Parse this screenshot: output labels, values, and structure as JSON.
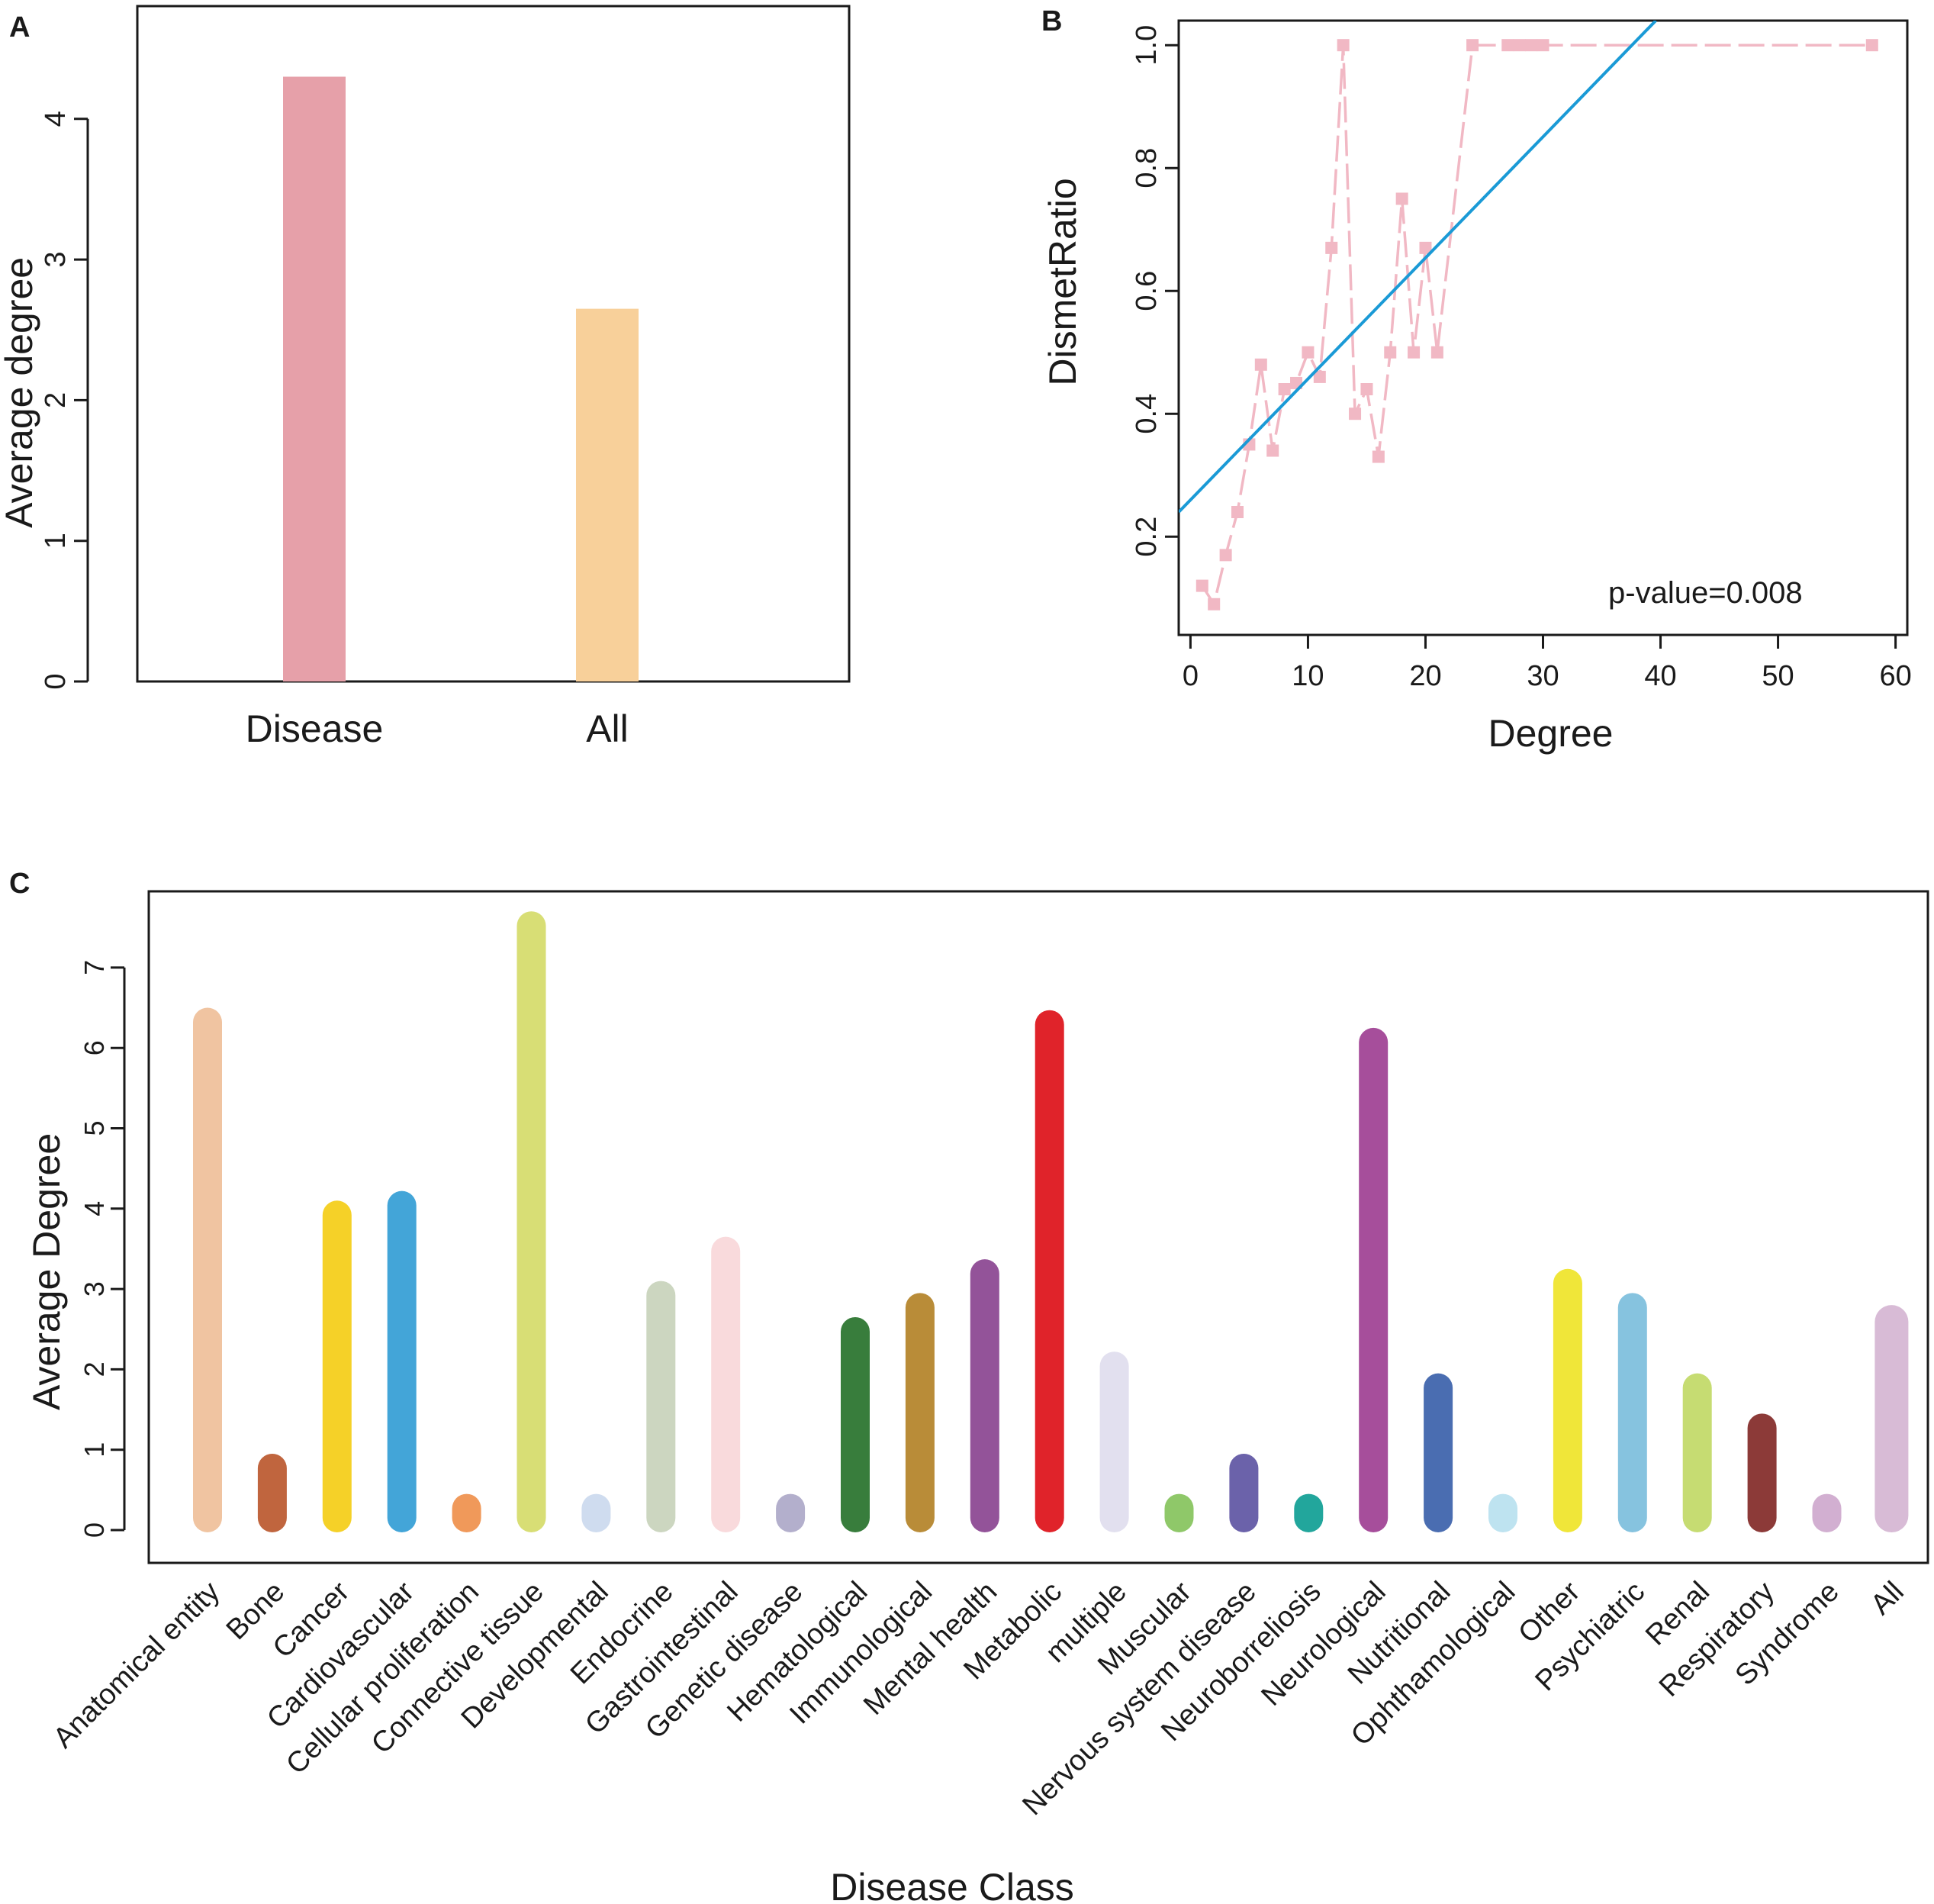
{
  "chart_data": [
    {
      "panel": "A",
      "type": "bar",
      "title": "",
      "xlabel": "",
      "ylabel": "Average degree",
      "categories": [
        "Disease",
        "All"
      ],
      "values": [
        4.3,
        2.65
      ],
      "colors": [
        "#e6a0a9",
        "#f8d09a"
      ],
      "ylim": [
        0,
        4.8
      ],
      "yticks": [
        0,
        1,
        2,
        3,
        4
      ],
      "grid": false
    },
    {
      "panel": "B",
      "type": "line",
      "title": "",
      "xlabel": "Degree",
      "ylabel": "DismetRatio",
      "xlim": [
        -1,
        61
      ],
      "ylim": [
        0.04,
        1.04
      ],
      "xticks": [
        0,
        10,
        20,
        30,
        40,
        50,
        60
      ],
      "yticks": [
        0.2,
        0.4,
        0.6,
        0.8,
        1.0
      ],
      "ytick_labels": [
        "0.2",
        "0.4",
        "0.6",
        "0.8",
        "1.0"
      ],
      "series": [
        {
          "name": "DismetRatio",
          "color": "#f1b8c4",
          "x": [
            1,
            2,
            3,
            4,
            5,
            6,
            7,
            8,
            9,
            10,
            11,
            12,
            13,
            14,
            15,
            16,
            17,
            18,
            19,
            20,
            21,
            24,
            27,
            28,
            29,
            30,
            58
          ],
          "y": [
            0.12,
            0.09,
            0.17,
            0.24,
            0.35,
            0.48,
            0.34,
            0.44,
            0.45,
            0.5,
            0.46,
            0.67,
            1.0,
            0.4,
            0.44,
            0.33,
            0.5,
            0.75,
            0.5,
            0.67,
            0.5,
            1.0,
            1.0,
            1.0,
            1.0,
            1.0,
            1.0
          ]
        },
        {
          "name": "fit",
          "color": "#1a9ad6",
          "x": [
            -1,
            39.6
          ],
          "y": [
            0.24,
            1.04
          ]
        }
      ],
      "annotation": "p-value=0.008"
    },
    {
      "panel": "C",
      "type": "bar",
      "title": "",
      "xlabel": "Disease Class",
      "ylabel": "Average Degree",
      "ylim": [
        -0.3,
        7.9
      ],
      "yticks": [
        0,
        1,
        2,
        3,
        4,
        5,
        6,
        7
      ],
      "categories": [
        "Anatomical entity",
        "Bone",
        "Cancer",
        "Cardiovascular",
        "Cellular proliferation",
        "Connective tissue",
        "Developmental",
        "Endocrine",
        "Gastrointestinal",
        "Genetic disease",
        "Hematological",
        "Immunological",
        "Mental health",
        "Metabolic",
        "multiple",
        "Muscular",
        "Nervous system disease",
        "Neuroborreliosis",
        "Neurological",
        "Nutritional",
        "Ophthamological",
        "Other",
        "Psychiatric",
        "Renal",
        "Respiratory",
        "Syndrome",
        "All"
      ],
      "values": [
        6.5,
        0.95,
        4.1,
        4.22,
        0.45,
        7.7,
        0.45,
        3.1,
        3.65,
        0.45,
        2.65,
        2.95,
        3.37,
        6.47,
        2.22,
        0.45,
        0.95,
        0.45,
        6.25,
        1.95,
        0.45,
        3.25,
        2.95,
        1.95,
        1.45,
        0.45,
        2.8
      ],
      "colors": [
        "#f0c4a1",
        "#c0653e",
        "#f5d128",
        "#43a5d8",
        "#f0995a",
        "#d8de75",
        "#cfdcef",
        "#ccd6c0",
        "#f9dadc",
        "#b3afcc",
        "#387d3c",
        "#b98c38",
        "#935399",
        "#e0232a",
        "#e2e0ef",
        "#8fc869",
        "#6b62aa",
        "#22a69c",
        "#a64e9b",
        "#4a6db1",
        "#bee3f0",
        "#f0e639",
        "#86c3df",
        "#c6dc72",
        "#8c3a38",
        "#d2afd1",
        "#d8bbd6"
      ],
      "grid": false
    }
  ],
  "panel_labels": [
    "A",
    "B",
    "C"
  ]
}
